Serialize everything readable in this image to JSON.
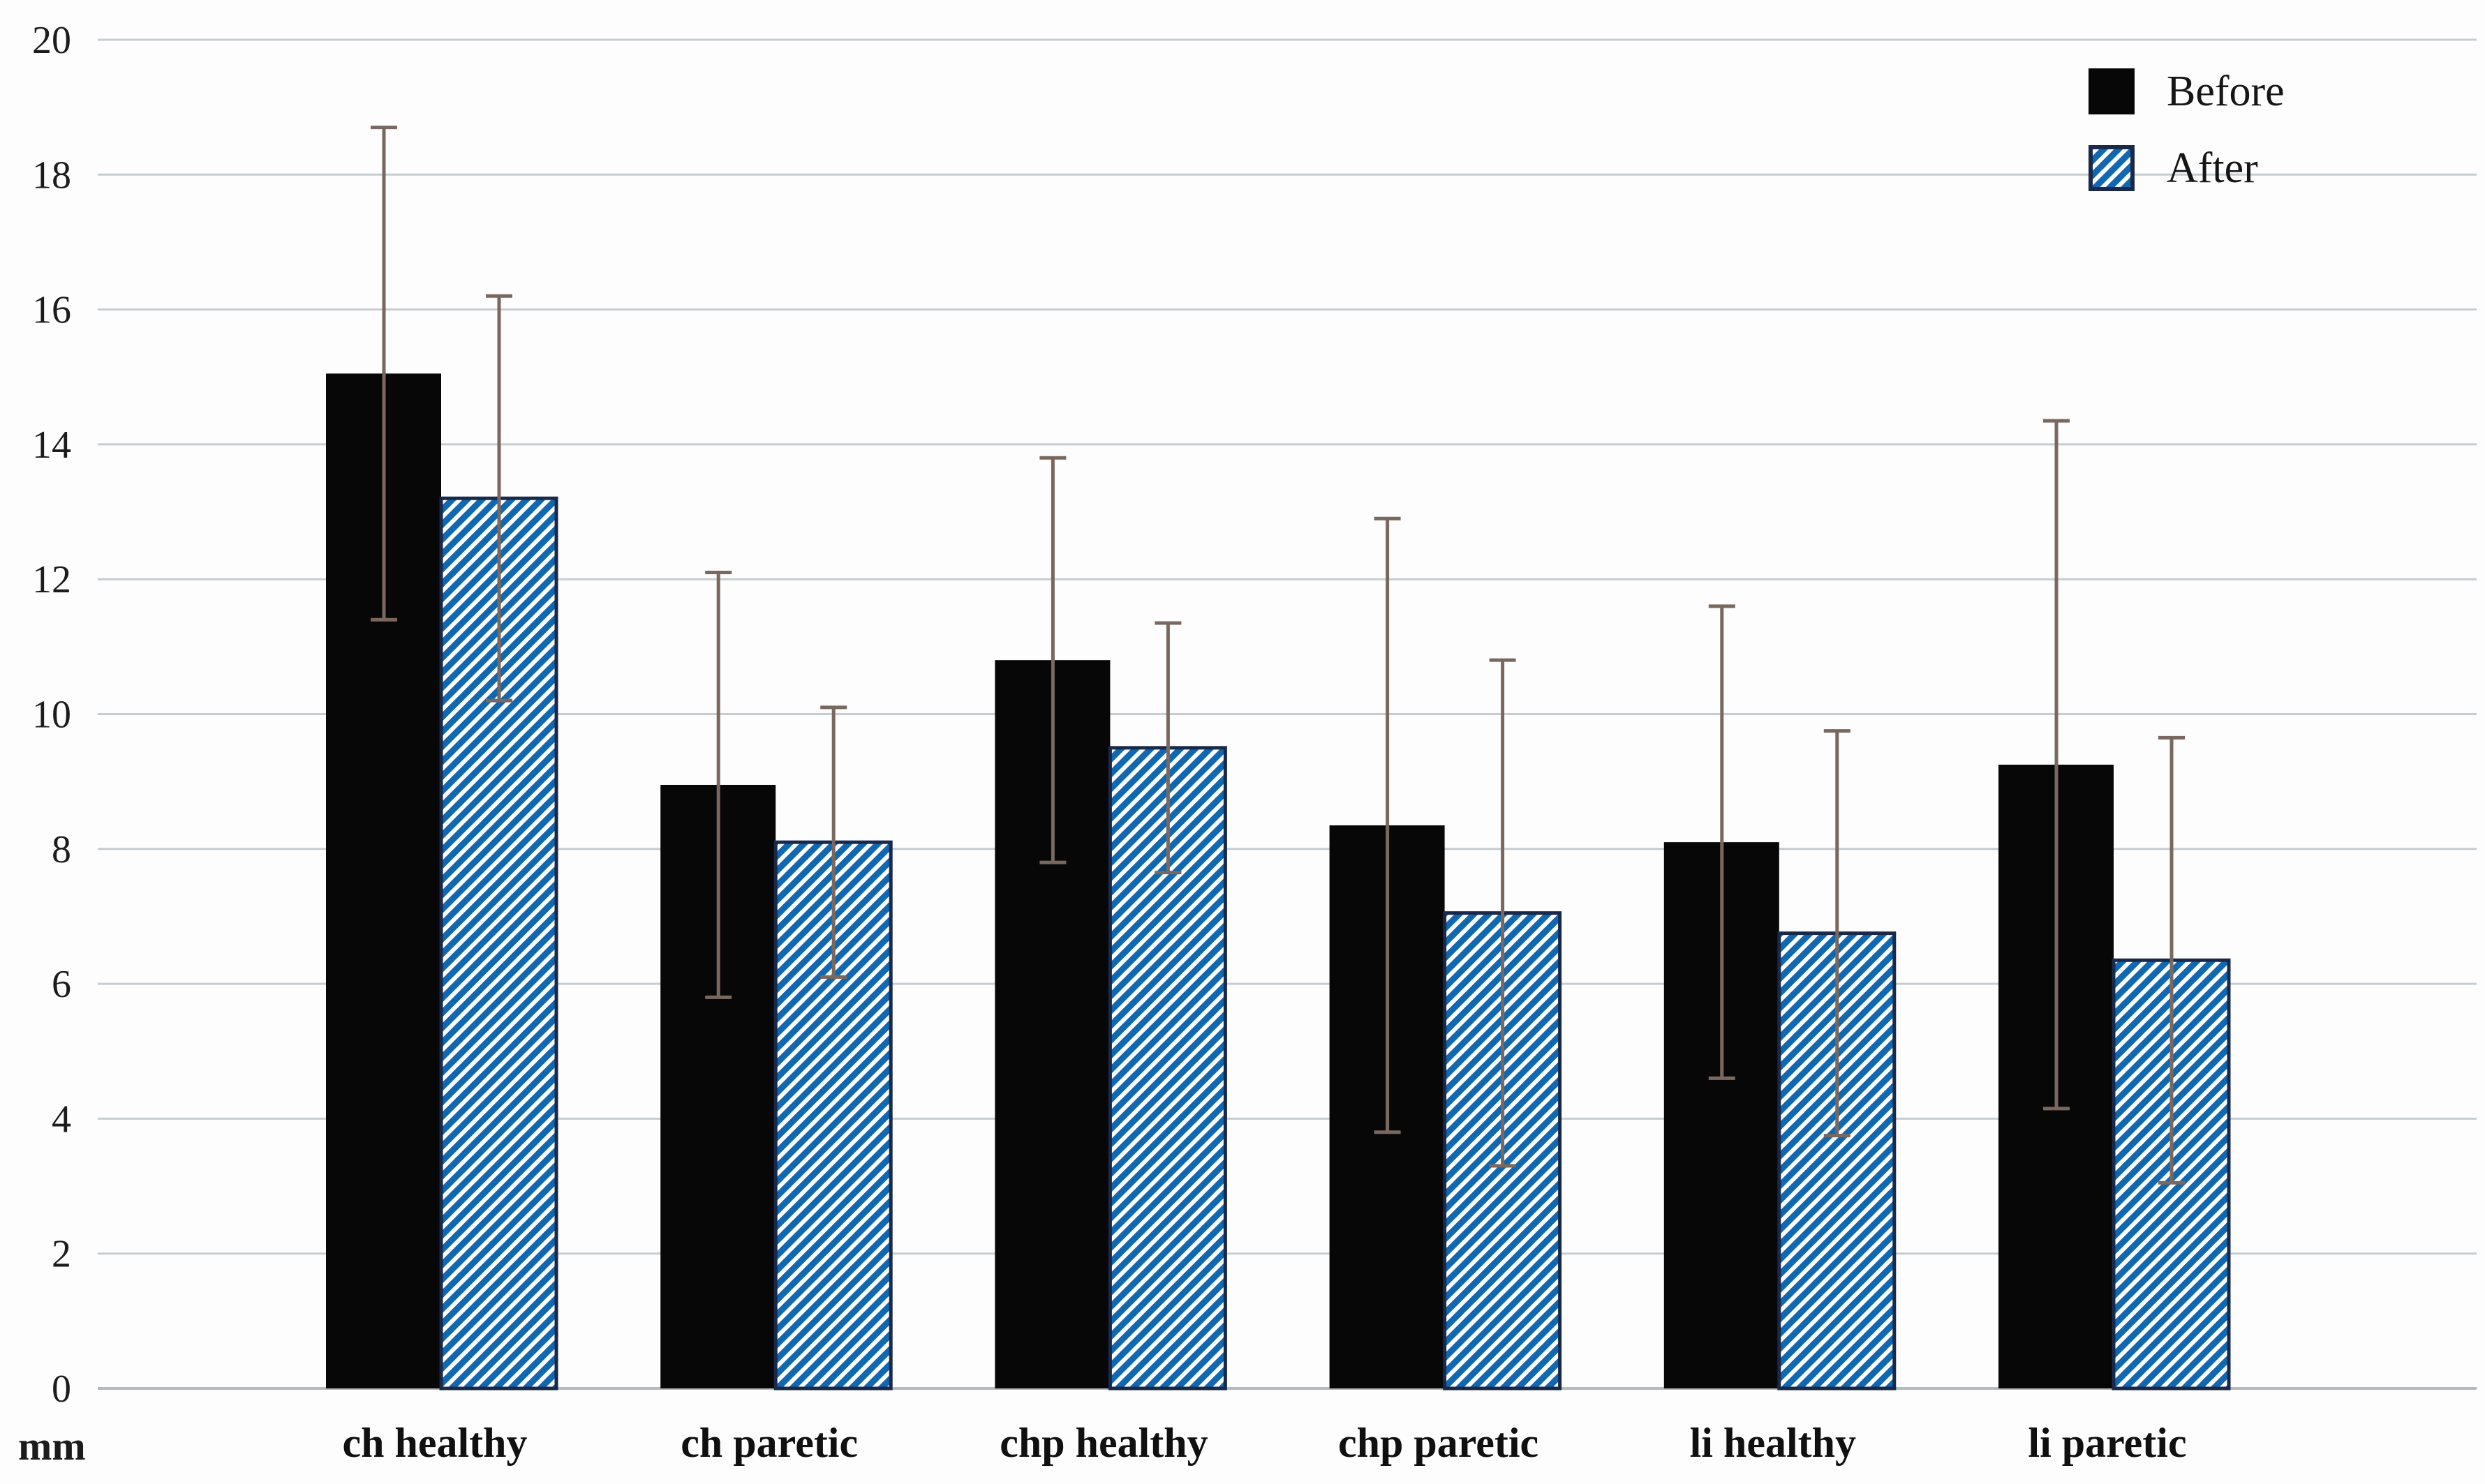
{
  "chart_data": {
    "type": "bar",
    "title": "",
    "xlabel": "",
    "ylabel": "",
    "unit_label": "mm",
    "categories": [
      "ch healthy",
      "ch paretic",
      "chp healthy",
      "chp paretic",
      "li healthy",
      "li paretic"
    ],
    "series": [
      {
        "name": "Before",
        "style": "solid-black",
        "values": [
          15.05,
          8.95,
          10.8,
          8.35,
          8.1,
          9.25
        ],
        "error": [
          3.65,
          3.15,
          3.0,
          4.55,
          3.5,
          5.1
        ]
      },
      {
        "name": "After",
        "style": "blue-diagonal-hatch",
        "values": [
          13.2,
          8.1,
          9.5,
          7.05,
          6.75,
          6.35
        ],
        "error": [
          3.0,
          2.0,
          1.85,
          3.75,
          3.0,
          3.3
        ]
      }
    ],
    "ylim": [
      0,
      20
    ],
    "ytick_step": 2,
    "yticks": [
      "0",
      "2",
      "4",
      "6",
      "8",
      "10",
      "12",
      "14",
      "16",
      "18",
      "20"
    ],
    "grid": "horizontal",
    "legend_position": "top-right",
    "error_bar_style": "capped, symmetric"
  },
  "colors": {
    "background": "#fdfdfd",
    "bar_black": "#070707",
    "hatch_blue": "#1068b0",
    "hatch_border": "#18294b",
    "error_bar": "#7a685e",
    "gridline": "#c6cdd1",
    "baseline": "#b4babd",
    "text": "#1c1c1c"
  }
}
